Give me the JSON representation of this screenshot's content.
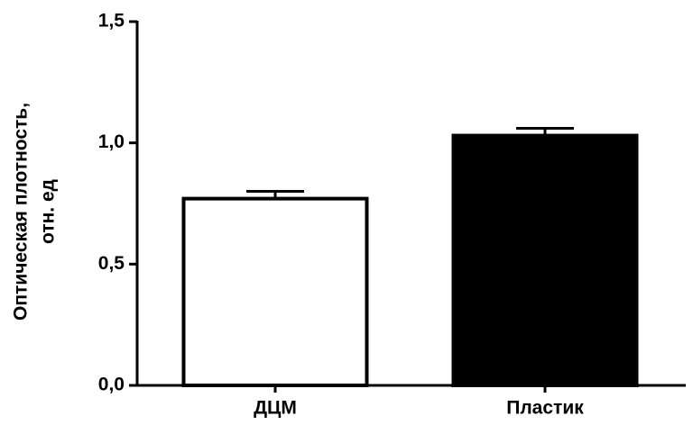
{
  "chart_data": {
    "type": "bar",
    "y_label": [
      "Оптическая плотность,",
      "отн. ед"
    ],
    "categories": [
      "ДЦМ",
      "Пластик"
    ],
    "values": [
      0.77,
      1.03
    ],
    "errors": [
      0.03,
      0.03
    ],
    "colors": [
      "#ffffff",
      "#000000"
    ],
    "ylim": [
      0,
      1.5
    ],
    "yticks": [
      {
        "value": 0,
        "label": "0,0"
      },
      {
        "value": 0.5,
        "label": "0,5"
      },
      {
        "value": 1.0,
        "label": "1,0"
      },
      {
        "value": 1.5,
        "label": "1,5"
      }
    ]
  }
}
